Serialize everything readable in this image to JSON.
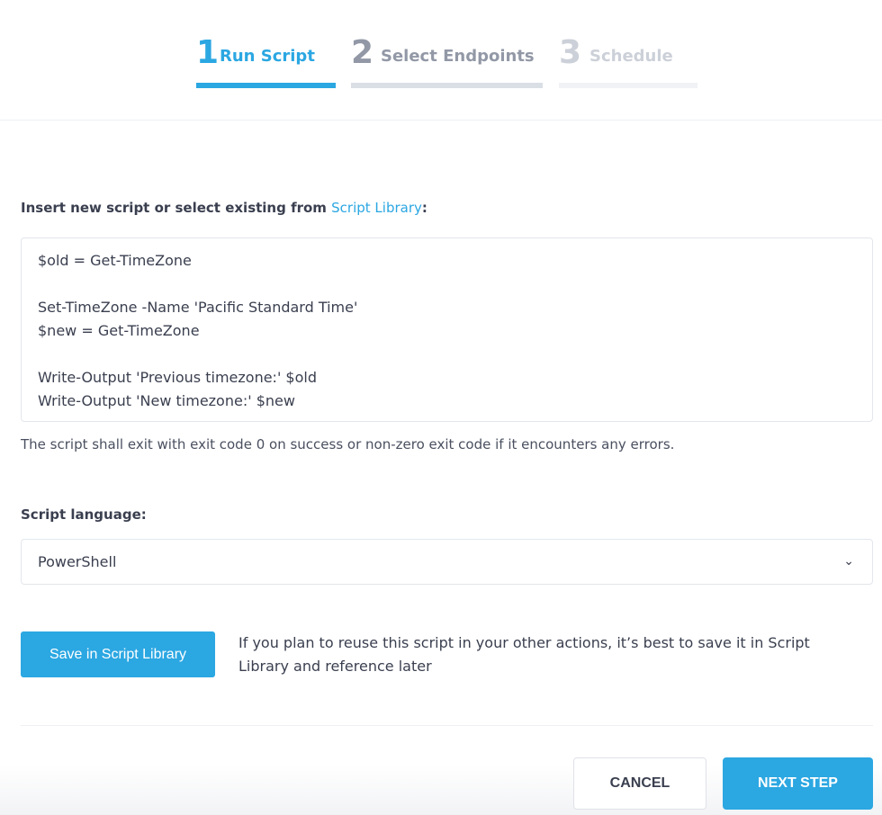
{
  "steps": [
    {
      "number": "1",
      "label": "Run Script",
      "state": "active"
    },
    {
      "number": "2",
      "label": "Select Endpoints",
      "state": "next"
    },
    {
      "number": "3",
      "label": "Schedule",
      "state": "disabled"
    }
  ],
  "script_section": {
    "label_prefix": "Insert new script or select existing from ",
    "library_link": "Script Library",
    "label_suffix": ":",
    "script": "$old = Get-TimeZone\n\nSet-TimeZone -Name 'Pacific Standard Time'\n$new = Get-TimeZone\n\nWrite-Output 'Previous timezone:' $old\nWrite-Output 'New timezone:' $new",
    "hint": "The script shall exit with exit code 0 on success or non-zero exit code if it encounters any errors."
  },
  "language": {
    "label": "Script language:",
    "selected": "PowerShell"
  },
  "save": {
    "button": "Save in Script Library",
    "note": "If you plan to reuse this script in your other actions, it’s best to save it in Script Library and reference later"
  },
  "footer": {
    "cancel": "CANCEL",
    "next": "NEXT STEP"
  },
  "colors": {
    "accent": "#2ba7e2"
  }
}
